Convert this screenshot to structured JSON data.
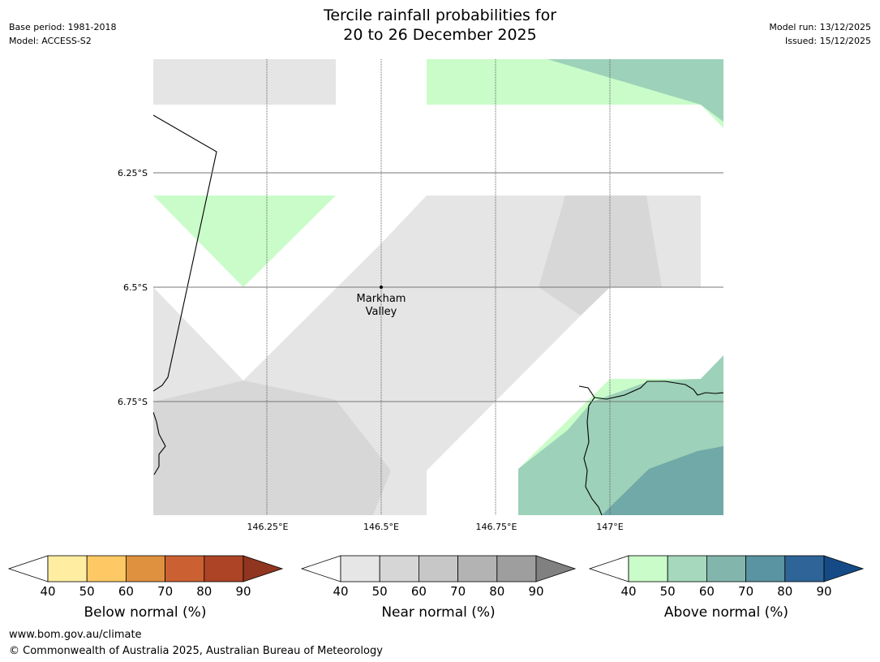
{
  "header": {
    "title_line1": "Tercile rainfall probabilities for",
    "title_line2": "20 to 26 December 2025",
    "base_period": "Base period: 1981-2018",
    "model": "Model: ACCESS-S2",
    "model_run": "Model run: 13/12/2025",
    "issued": "Issued: 15/12/2025"
  },
  "map": {
    "lat_labels": [
      "6.25°S",
      "6.5°S",
      "6.75°S"
    ],
    "lon_labels": [
      "146.25°E",
      "146.5°E",
      "146.75°E",
      "147°E"
    ],
    "place": {
      "name_line1": "Markham",
      "name_line2": "Valley"
    },
    "colors": {
      "near_40": "#e5e5e5",
      "near_50": "#d7d7d7",
      "above_40": "#c9fcc9",
      "above_50": "#9dd1b9",
      "above_60": "#71a8a8"
    }
  },
  "colorbars": [
    {
      "name": "below",
      "label": "Below normal (%)",
      "ticks": [
        "40",
        "50",
        "60",
        "70",
        "80",
        "90"
      ],
      "colors": [
        "#ffeea1",
        "#fec964",
        "#e0913f",
        "#cb6132",
        "#ac4425",
        "#8f3520"
      ]
    },
    {
      "name": "near",
      "label": "Near normal (%)",
      "ticks": [
        "40",
        "50",
        "60",
        "70",
        "80",
        "90"
      ],
      "colors": [
        "#e6e6e6",
        "#d6d6d6",
        "#c7c7c7",
        "#b3b3b3",
        "#9e9e9e",
        "#808080"
      ]
    },
    {
      "name": "above",
      "label": "Above normal (%)",
      "ticks": [
        "40",
        "50",
        "60",
        "70",
        "80",
        "90"
      ],
      "colors": [
        "#c9fcc9",
        "#a5d8bd",
        "#82b6ad",
        "#5a93a1",
        "#2e6497",
        "#164a86"
      ]
    }
  ],
  "footer": {
    "url": "www.bom.gov.au/climate",
    "copyright": "© Commonwealth of Australia 2025, Australian Bureau of Meteorology"
  }
}
